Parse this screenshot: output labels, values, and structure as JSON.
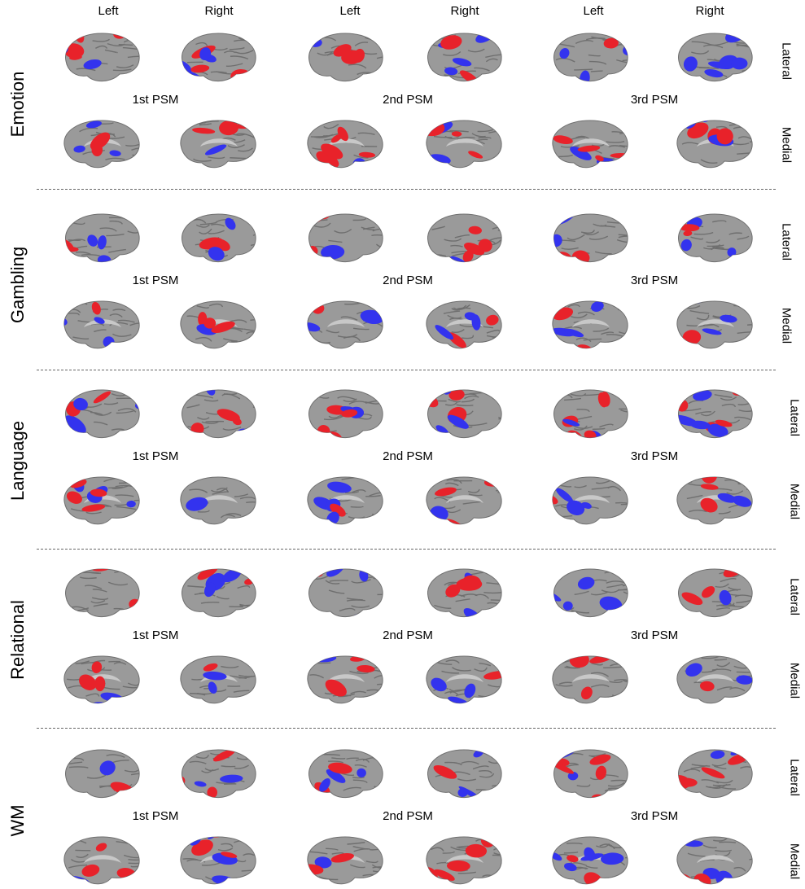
{
  "column_headers": [
    "Left",
    "Right",
    "Left",
    "Right",
    "Left",
    "Right"
  ],
  "view_labels": {
    "lateral": "Lateral",
    "medial": "Medial"
  },
  "psm_labels": [
    "1st PSM",
    "2nd PSM",
    "3rd PSM"
  ],
  "tasks": [
    {
      "label": "Emotion"
    },
    {
      "label": "Gambling"
    },
    {
      "label": "Language"
    },
    {
      "label": "Relational"
    },
    {
      "label": "WM"
    }
  ],
  "colors": {
    "cortex": "#9a9a9a",
    "cortex_shadow": "#6f6f6f",
    "positive": "#e8222a",
    "negative": "#3333ee"
  }
}
